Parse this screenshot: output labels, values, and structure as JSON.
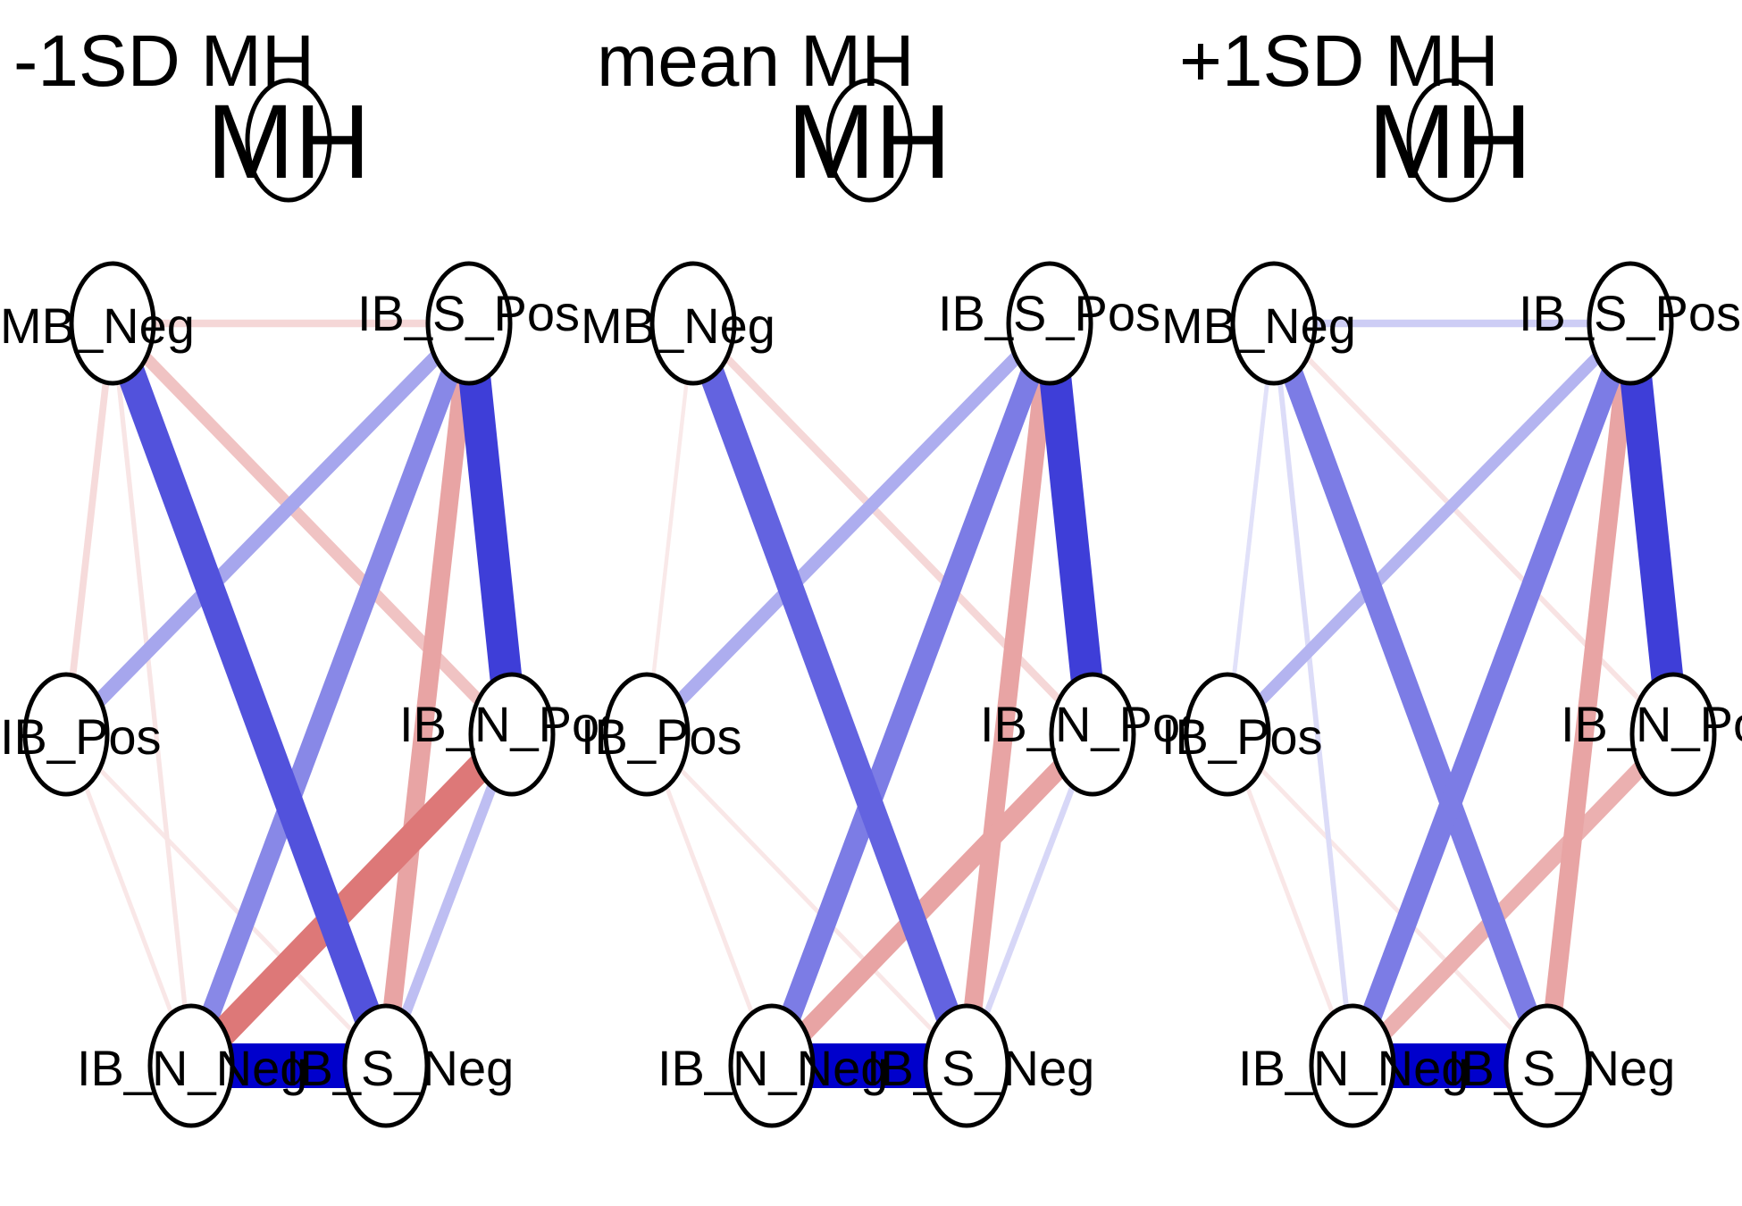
{
  "figure": {
    "panels": [
      {
        "title": "-1SD MH",
        "moderator_label": "MH",
        "nodes": {
          "MB_Neg": "MB_Neg",
          "IB_S_Pos": "IB_S_Pos",
          "IB_Pos": "IB_Pos",
          "IB_N_Pos": "IB_N_Pos",
          "IB_N_Neg": "IB_N_Neg",
          "IB_S_Neg": "IB_S_Neg"
        },
        "edges": [
          {
            "from": "MB_Neg",
            "to": "IB_S_Pos",
            "sign": "negative",
            "strength": 0.12
          },
          {
            "from": "MB_Neg",
            "to": "IB_S_Neg",
            "sign": "positive",
            "strength": 0.62
          },
          {
            "from": "MB_Neg",
            "to": "IB_N_Pos",
            "sign": "negative",
            "strength": 0.22
          },
          {
            "from": "MB_Neg",
            "to": "IB_Pos",
            "sign": "negative",
            "strength": 0.1
          },
          {
            "from": "MB_Neg",
            "to": "IB_N_Neg",
            "sign": "negative",
            "strength": 0.05
          },
          {
            "from": "IB_S_Pos",
            "to": "IB_Pos",
            "sign": "positive",
            "strength": 0.28
          },
          {
            "from": "IB_S_Pos",
            "to": "IB_N_Pos",
            "sign": "positive",
            "strength": 0.7
          },
          {
            "from": "IB_S_Pos",
            "to": "IB_N_Neg",
            "sign": "positive",
            "strength": 0.4
          },
          {
            "from": "IB_S_Pos",
            "to": "IB_S_Neg",
            "sign": "negative",
            "strength": 0.38
          },
          {
            "from": "IB_N_Pos",
            "to": "IB_N_Neg",
            "sign": "negative",
            "strength": 0.6
          },
          {
            "from": "IB_N_Pos",
            "to": "IB_S_Neg",
            "sign": "positive",
            "strength": 0.18
          },
          {
            "from": "IB_Pos",
            "to": "IB_N_Neg",
            "sign": "negative",
            "strength": 0.04
          },
          {
            "from": "IB_Pos",
            "to": "IB_S_Neg",
            "sign": "negative",
            "strength": 0.04
          },
          {
            "from": "IB_N_Neg",
            "to": "IB_S_Neg",
            "sign": "positive",
            "strength": 1.0
          }
        ]
      },
      {
        "title": "mean MH",
        "moderator_label": "MH",
        "nodes": {
          "MB_Neg": "MB_Neg",
          "IB_S_Pos": "IB_S_Pos",
          "IB_Pos": "IB_Pos",
          "IB_N_Pos": "IB_N_Pos",
          "IB_N_Neg": "IB_N_Neg",
          "IB_S_Neg": "IB_S_Neg"
        },
        "edges": [
          {
            "from": "MB_Neg",
            "to": "IB_S_Neg",
            "sign": "positive",
            "strength": 0.55
          },
          {
            "from": "MB_Neg",
            "to": "IB_N_Pos",
            "sign": "negative",
            "strength": 0.12
          },
          {
            "from": "MB_Neg",
            "to": "IB_Pos",
            "sign": "negative",
            "strength": 0.03
          },
          {
            "from": "IB_S_Pos",
            "to": "IB_Pos",
            "sign": "positive",
            "strength": 0.25
          },
          {
            "from": "IB_S_Pos",
            "to": "IB_N_Pos",
            "sign": "positive",
            "strength": 0.7
          },
          {
            "from": "IB_S_Pos",
            "to": "IB_N_Neg",
            "sign": "positive",
            "strength": 0.45
          },
          {
            "from": "IB_S_Pos",
            "to": "IB_S_Neg",
            "sign": "negative",
            "strength": 0.38
          },
          {
            "from": "IB_N_Pos",
            "to": "IB_N_Neg",
            "sign": "negative",
            "strength": 0.38
          },
          {
            "from": "IB_N_Pos",
            "to": "IB_S_Neg",
            "sign": "positive",
            "strength": 0.08
          },
          {
            "from": "IB_Pos",
            "to": "IB_N_Neg",
            "sign": "negative",
            "strength": 0.04
          },
          {
            "from": "IB_Pos",
            "to": "IB_S_Neg",
            "sign": "negative",
            "strength": 0.04
          },
          {
            "from": "IB_N_Neg",
            "to": "IB_S_Neg",
            "sign": "positive",
            "strength": 1.0
          }
        ]
      },
      {
        "title": "+1SD MH",
        "moderator_label": "MH",
        "nodes": {
          "MB_Neg": "MB_Neg",
          "IB_S_Pos": "IB_S_Pos",
          "IB_Pos": "IB_Pos",
          "IB_N_Pos": "IB_N_Pos",
          "IB_N_Neg": "IB_N_Neg",
          "IB_S_Neg": "IB_S_Neg"
        },
        "edges": [
          {
            "from": "MB_Neg",
            "to": "IB_S_Pos",
            "sign": "positive",
            "strength": 0.12
          },
          {
            "from": "MB_Neg",
            "to": "IB_S_Neg",
            "sign": "positive",
            "strength": 0.45
          },
          {
            "from": "MB_Neg",
            "to": "IB_N_Pos",
            "sign": "negative",
            "strength": 0.06
          },
          {
            "from": "MB_Neg",
            "to": "IB_Pos",
            "sign": "positive",
            "strength": 0.04
          },
          {
            "from": "MB_Neg",
            "to": "IB_N_Neg",
            "sign": "positive",
            "strength": 0.06
          },
          {
            "from": "IB_S_Pos",
            "to": "IB_Pos",
            "sign": "positive",
            "strength": 0.22
          },
          {
            "from": "IB_S_Pos",
            "to": "IB_N_Pos",
            "sign": "positive",
            "strength": 0.7
          },
          {
            "from": "IB_S_Pos",
            "to": "IB_N_Neg",
            "sign": "positive",
            "strength": 0.45
          },
          {
            "from": "IB_S_Pos",
            "to": "IB_S_Neg",
            "sign": "negative",
            "strength": 0.38
          },
          {
            "from": "IB_N_Pos",
            "to": "IB_N_Neg",
            "sign": "negative",
            "strength": 0.32
          },
          {
            "from": "IB_Pos",
            "to": "IB_N_Neg",
            "sign": "negative",
            "strength": 0.04
          },
          {
            "from": "IB_Pos",
            "to": "IB_S_Neg",
            "sign": "negative",
            "strength": 0.04
          },
          {
            "from": "IB_N_Neg",
            "to": "IB_S_Neg",
            "sign": "positive",
            "strength": 1.0
          }
        ]
      }
    ],
    "colors": {
      "positive_edge": "#0000cc",
      "negative_edge": "#cc3333",
      "node_fill": "#ffffff",
      "node_stroke": "#000000"
    }
  }
}
